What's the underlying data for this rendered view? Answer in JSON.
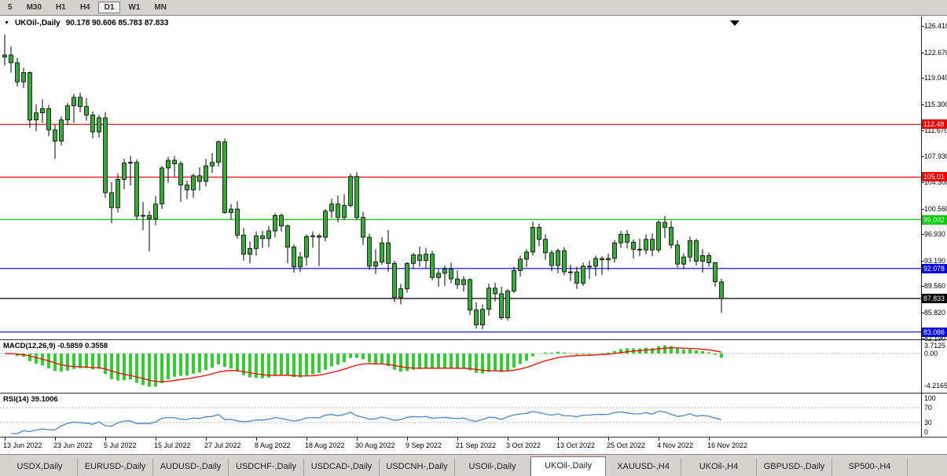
{
  "toolbar": {
    "timeframes": [
      "5",
      "M30",
      "H1",
      "H4",
      "D1",
      "W1",
      "MN"
    ],
    "active": "D1"
  },
  "colors": {
    "candle": "#3aa83a",
    "wick": "#000000",
    "macd_hist": "#33cc33",
    "macd_signal": "#ff0000",
    "rsi_line": "#4a86c8",
    "dotted_grid": "#a0a0a0",
    "rsi_levels": "#b0b0b0"
  },
  "chart_data": {
    "type": "candlestick",
    "title": "UKOil-,Daily",
    "ohlc_header": "90.178 90.606 85.783 87.833",
    "ylim": [
      82.0,
      127.7
    ],
    "y_ticks": [
      "126.410",
      "122.670",
      "119.040",
      "115.300",
      "111.670",
      "107.930",
      "104.300",
      "100.560",
      "96.930",
      "93.190",
      "89.560",
      "85.820",
      "82.190"
    ],
    "levels": [
      {
        "label": "112.48",
        "price": 112.48,
        "color": "#ee0000"
      },
      {
        "label": "105.01",
        "price": 105.01,
        "color": "#ee0000"
      },
      {
        "label": "99.002",
        "price": 99.002,
        "color": "#00cc00"
      },
      {
        "label": "92.078",
        "price": 92.078,
        "color": "#0000ee"
      },
      {
        "label": "87.833",
        "price": 87.833,
        "color": "#000000"
      },
      {
        "label": "83.086",
        "price": 83.086,
        "color": "#0000ee"
      }
    ],
    "x_ticks": [
      {
        "label": "13 Jun 2022",
        "i": 0
      },
      {
        "label": "23 Jun 2022",
        "i": 8
      },
      {
        "label": "5 Jul 2022",
        "i": 16
      },
      {
        "label": "15 Jul 2022",
        "i": 24
      },
      {
        "label": "27 Jul 2022",
        "i": 32
      },
      {
        "label": "8 Aug 2022",
        "i": 40
      },
      {
        "label": "18 Aug 2022",
        "i": 48
      },
      {
        "label": "30 Aug 2022",
        "i": 56
      },
      {
        "label": "9 Sep 2022",
        "i": 64
      },
      {
        "label": "21 Sep 2022",
        "i": 72
      },
      {
        "label": "3 Oct 2022",
        "i": 80
      },
      {
        "label": "13 Oct 2022",
        "i": 88
      },
      {
        "label": "25 Oct 2022",
        "i": 96
      },
      {
        "label": "4 Nov 2022",
        "i": 104
      },
      {
        "label": "16 Nov 2022",
        "i": 112
      }
    ],
    "ohlc": [
      [
        122.0,
        125.2,
        120.8,
        122.3
      ],
      [
        122.3,
        123.5,
        119.8,
        121.2
      ],
      [
        121.2,
        121.9,
        117.8,
        118.5
      ],
      [
        118.5,
        120.5,
        117.6,
        119.8
      ],
      [
        119.8,
        120.0,
        112.0,
        113.1
      ],
      [
        113.1,
        115.3,
        111.5,
        114.1
      ],
      [
        114.1,
        116.0,
        112.7,
        114.7
      ],
      [
        114.7,
        115.2,
        110.8,
        111.7
      ],
      [
        111.7,
        112.4,
        107.6,
        110.1
      ],
      [
        110.1,
        113.6,
        109.5,
        113.1
      ],
      [
        113.1,
        115.5,
        112.4,
        115.1
      ],
      [
        115.1,
        116.8,
        112.7,
        116.3
      ],
      [
        116.3,
        117.0,
        114.2,
        115.0
      ],
      [
        115.0,
        116.2,
        113.0,
        113.8
      ],
      [
        113.8,
        114.3,
        110.5,
        111.4
      ],
      [
        111.4,
        113.8,
        110.6,
        113.4
      ],
      [
        113.4,
        114.2,
        102.1,
        102.8
      ],
      [
        102.8,
        104.3,
        98.5,
        100.7
      ],
      [
        100.7,
        105.5,
        100.0,
        104.7
      ],
      [
        104.7,
        107.6,
        103.3,
        107.0
      ],
      [
        107.0,
        108.0,
        103.8,
        107.1
      ],
      [
        107.1,
        107.5,
        98.9,
        99.5
      ],
      [
        99.5,
        101.5,
        97.5,
        99.6
      ],
      [
        99.6,
        100.2,
        94.5,
        99.1
      ],
      [
        99.1,
        102.3,
        98.2,
        101.2
      ],
      [
        101.2,
        106.6,
        100.5,
        106.3
      ],
      [
        106.3,
        107.9,
        104.2,
        107.4
      ],
      [
        107.4,
        108.0,
        105.1,
        106.9
      ],
      [
        106.9,
        107.3,
        101.5,
        103.9
      ],
      [
        103.9,
        104.5,
        101.9,
        103.2
      ],
      [
        103.2,
        105.5,
        102.1,
        105.2
      ],
      [
        105.2,
        106.4,
        103.1,
        104.4
      ],
      [
        104.4,
        107.6,
        103.7,
        106.6
      ],
      [
        106.6,
        108.4,
        105.6,
        107.1
      ],
      [
        107.1,
        110.2,
        106.5,
        110.0
      ],
      [
        110.0,
        110.5,
        99.8,
        100.0
      ],
      [
        100.0,
        101.2,
        99.0,
        100.5
      ],
      [
        100.5,
        101.6,
        96.3,
        96.8
      ],
      [
        96.8,
        97.8,
        93.2,
        94.1
      ],
      [
        94.1,
        95.9,
        92.8,
        94.9
      ],
      [
        94.9,
        97.3,
        93.9,
        96.7
      ],
      [
        96.7,
        97.4,
        95.0,
        96.3
      ],
      [
        96.3,
        98.1,
        95.1,
        97.4
      ],
      [
        97.4,
        99.9,
        96.5,
        99.6
      ],
      [
        99.6,
        99.9,
        97.3,
        98.1
      ],
      [
        98.1,
        98.3,
        92.8,
        95.1
      ],
      [
        95.1,
        95.5,
        91.5,
        92.3
      ],
      [
        92.3,
        94.4,
        91.6,
        93.7
      ],
      [
        93.7,
        96.9,
        92.5,
        96.6
      ],
      [
        96.6,
        97.3,
        95.0,
        96.7
      ],
      [
        96.7,
        97.0,
        92.4,
        96.5
      ],
      [
        96.5,
        100.5,
        95.9,
        100.2
      ],
      [
        100.2,
        102.0,
        99.2,
        101.2
      ],
      [
        101.2,
        102.4,
        98.6,
        99.3
      ],
      [
        99.3,
        102.6,
        98.9,
        101.0
      ],
      [
        101.0,
        105.5,
        100.7,
        105.1
      ],
      [
        105.1,
        105.7,
        98.9,
        99.3
      ],
      [
        99.3,
        100.1,
        95.4,
        96.5
      ],
      [
        96.5,
        97.0,
        91.9,
        92.4
      ],
      [
        92.4,
        94.8,
        91.3,
        93.0
      ],
      [
        93.0,
        96.5,
        92.6,
        95.7
      ],
      [
        95.7,
        97.5,
        91.6,
        92.8
      ],
      [
        92.8,
        93.2,
        87.3,
        88.0
      ],
      [
        88.0,
        89.9,
        87.0,
        89.2
      ],
      [
        89.2,
        93.0,
        88.7,
        92.8
      ],
      [
        92.8,
        94.3,
        92.0,
        94.0
      ],
      [
        94.0,
        95.2,
        92.3,
        93.2
      ],
      [
        93.2,
        95.0,
        92.1,
        94.1
      ],
      [
        94.1,
        94.6,
        90.4,
        90.8
      ],
      [
        90.8,
        92.0,
        89.5,
        91.4
      ],
      [
        91.4,
        92.5,
        89.6,
        92.0
      ],
      [
        92.0,
        92.9,
        90.0,
        90.6
      ],
      [
        90.6,
        91.8,
        89.2,
        89.8
      ],
      [
        89.8,
        91.0,
        88.8,
        90.5
      ],
      [
        90.5,
        90.7,
        85.5,
        86.2
      ],
      [
        86.2,
        87.3,
        83.6,
        84.1
      ],
      [
        84.1,
        87.0,
        83.5,
        86.3
      ],
      [
        86.3,
        89.9,
        85.4,
        89.3
      ],
      [
        89.3,
        90.1,
        87.4,
        88.5
      ],
      [
        88.5,
        89.5,
        84.8,
        85.1
      ],
      [
        85.1,
        89.2,
        84.7,
        88.9
      ],
      [
        88.9,
        92.3,
        88.6,
        91.8
      ],
      [
        91.8,
        93.9,
        90.9,
        93.4
      ],
      [
        93.4,
        94.8,
        92.3,
        94.4
      ],
      [
        94.4,
        98.7,
        93.9,
        97.9
      ],
      [
        97.9,
        98.4,
        95.2,
        96.2
      ],
      [
        96.2,
        96.9,
        93.3,
        94.3
      ],
      [
        94.3,
        94.7,
        91.7,
        92.5
      ],
      [
        92.5,
        94.9,
        91.4,
        94.6
      ],
      [
        94.6,
        95.1,
        91.1,
        91.6
      ],
      [
        91.6,
        92.6,
        90.3,
        91.6
      ],
      [
        91.6,
        92.3,
        89.2,
        90.0
      ],
      [
        90.0,
        92.9,
        89.6,
        92.4
      ],
      [
        92.4,
        93.2,
        90.6,
        92.4
      ],
      [
        92.4,
        93.9,
        91.0,
        93.5
      ],
      [
        93.5,
        93.8,
        91.2,
        93.3
      ],
      [
        93.3,
        94.2,
        91.8,
        93.5
      ],
      [
        93.5,
        96.1,
        92.9,
        95.7
      ],
      [
        95.7,
        97.4,
        95.0,
        96.9
      ],
      [
        96.9,
        97.5,
        94.9,
        95.8
      ],
      [
        95.8,
        96.2,
        93.5,
        94.8
      ],
      [
        94.8,
        96.3,
        93.8,
        94.7
      ],
      [
        94.7,
        96.9,
        94.1,
        96.2
      ],
      [
        96.2,
        97.0,
        93.8,
        94.7
      ],
      [
        94.7,
        98.9,
        94.3,
        98.6
      ],
      [
        98.6,
        99.5,
        96.4,
        97.9
      ],
      [
        97.9,
        98.8,
        94.9,
        95.4
      ],
      [
        95.4,
        96.1,
        92.2,
        92.7
      ],
      [
        92.7,
        94.2,
        92.0,
        93.7
      ],
      [
        93.7,
        96.6,
        93.0,
        96.0
      ],
      [
        96.0,
        96.3,
        92.5,
        93.1
      ],
      [
        93.1,
        94.8,
        91.5,
        93.9
      ],
      [
        93.9,
        94.3,
        92.3,
        92.9
      ],
      [
        92.9,
        93.0,
        89.5,
        90.2
      ],
      [
        90.178,
        90.606,
        85.783,
        87.833
      ]
    ],
    "indicators": [
      {
        "name": "MACD",
        "label": "MACD(12,26,9) -0.5859 0.3558",
        "params": [
          12,
          26,
          9
        ],
        "scale": [
          "3.7125",
          "0.00",
          "-4.2165"
        ]
      },
      {
        "name": "RSI",
        "label": "RSI(14) 39.1006",
        "period": 14,
        "scale": [
          "100",
          "70",
          "30",
          "0"
        ],
        "levels": [
          70,
          30
        ]
      }
    ]
  },
  "tabs": {
    "items": [
      "USDX,Daily",
      "EURUSD-,Daily",
      "AUDUSD-,Daily",
      "USDCHF-,Daily",
      "USDCAD-,Daily",
      "USDCNH-,Daily",
      "USOil-,Daily",
      "UKOil-,Daily",
      "XAUUSD-,H4",
      "UKOil-,H4",
      "GBPUSD-,Daily",
      "SP500-,H4"
    ],
    "active": "UKOil-,Daily"
  }
}
